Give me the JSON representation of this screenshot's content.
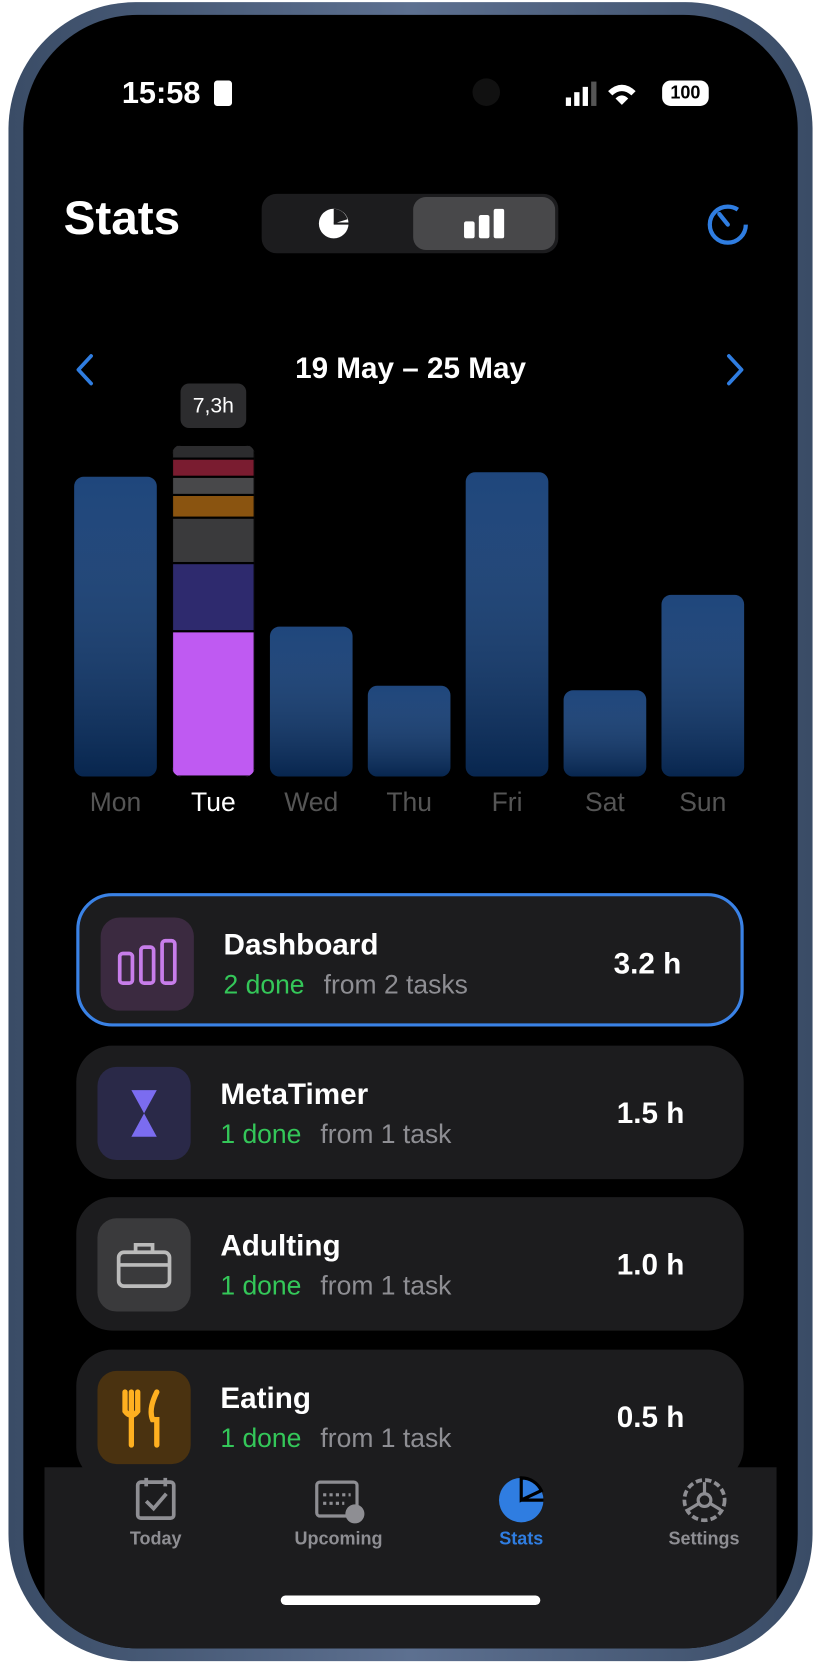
{
  "status_bar": {
    "time": "15:58",
    "battery": "100"
  },
  "header": {
    "title": "Stats",
    "week": "19 May – 25 May"
  },
  "chart_data": {
    "type": "bar",
    "categories": [
      "Mon",
      "Tue",
      "Wed",
      "Thu",
      "Fri",
      "Sat",
      "Sun"
    ],
    "values": [
      6.6,
      7.3,
      3.3,
      2.0,
      6.7,
      1.9,
      4.0
    ],
    "value_labels": [
      null,
      "7,3h",
      null,
      null,
      null,
      null,
      null
    ],
    "color": "#0b3670",
    "selected_index": 1,
    "segments": [
      {
        "color": "#bf5af2",
        "value": 3.2
      },
      {
        "color": "#2e2a6e",
        "value": 1.5
      },
      {
        "color": "#3a3a3c",
        "value": 1.0
      },
      {
        "color": "#8a5410",
        "value": 0.5
      },
      {
        "color": "#48484a",
        "value": 0.4
      },
      {
        "color": "#7a1c30",
        "value": 0.4
      },
      {
        "color": "#2c2c2e",
        "value": 0.3
      }
    ]
  },
  "projects": [
    {
      "name": "Dashboard",
      "done": "2 done",
      "from": "from 2 tasks",
      "hours": "3.2 h"
    },
    {
      "name": "MetaTimer",
      "done": "1 done",
      "from": "from 1 task",
      "hours": "1.5 h"
    },
    {
      "name": "Adulting",
      "done": "1 done",
      "from": "from 1 task",
      "hours": "1.0 h"
    },
    {
      "name": "Eating",
      "done": "1 done",
      "from": "from 1 task",
      "hours": "0.5 h"
    }
  ],
  "tabs": [
    "Today",
    "Upcoming",
    "Stats",
    "Settings"
  ]
}
